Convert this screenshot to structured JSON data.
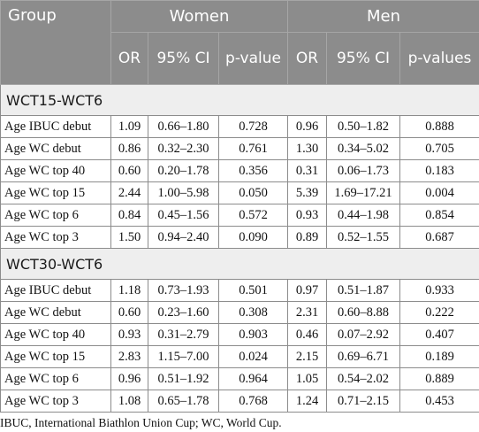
{
  "header": {
    "group": "Group",
    "women": "Women",
    "men": "Men",
    "sub": [
      "OR",
      "95% CI",
      "p-value",
      "OR",
      "95% CI",
      "p-values"
    ]
  },
  "sections": [
    {
      "title": "WCT15-WCT6",
      "rows": [
        [
          "Age IBUC debut",
          "1.09",
          "0.66–1.80",
          "0.728",
          "0.96",
          "0.50–1.82",
          "0.888"
        ],
        [
          "Age WC debut",
          "0.86",
          "0.32–2.30",
          "0.761",
          "1.30",
          "0.34–5.02",
          "0.705"
        ],
        [
          "Age WC top 40",
          "0.60",
          "0.20–1.78",
          "0.356",
          "0.31",
          "0.06–1.73",
          "0.183"
        ],
        [
          "Age WC top 15",
          "2.44",
          "1.00–5.98",
          "0.050",
          "5.39",
          "1.69–17.21",
          "0.004"
        ],
        [
          "Age WC top 6",
          "0.84",
          "0.45–1.56",
          "0.572",
          "0.93",
          "0.44–1.98",
          "0.854"
        ],
        [
          "Age WC top 3",
          "1.50",
          "0.94–2.40",
          "0.090",
          "0.89",
          "0.52–1.55",
          "0.687"
        ]
      ]
    },
    {
      "title": "WCT30-WCT6",
      "rows": [
        [
          "Age IBUC debut",
          "1.18",
          "0.73–1.93",
          "0.501",
          "0.97",
          "0.51–1.87",
          "0.933"
        ],
        [
          "Age WC debut",
          "0.60",
          "0.23–1.60",
          "0.308",
          "2.31",
          "0.60–8.88",
          "0.222"
        ],
        [
          "Age WC top 40",
          "0.93",
          "0.31–2.79",
          "0.903",
          "0.46",
          "0.07–2.92",
          "0.407"
        ],
        [
          "Age WC top 15",
          "2.83",
          "1.15–7.00",
          "0.024",
          "2.15",
          "0.69–6.71",
          "0.189"
        ],
        [
          "Age WC top 6",
          "0.96",
          "0.51–1.92",
          "0.964",
          "1.05",
          "0.54–2.02",
          "0.889"
        ],
        [
          "Age WC top 3",
          "1.08",
          "0.65–1.78",
          "0.768",
          "1.24",
          "0.71–2.15",
          "0.453"
        ]
      ]
    }
  ],
  "footnote": "IBUC, International Biathlon Union Cup; WC, World Cup."
}
